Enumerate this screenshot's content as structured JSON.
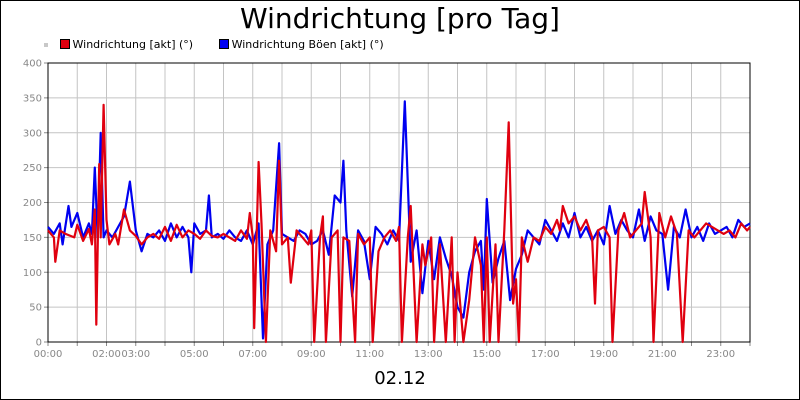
{
  "chart_data": {
    "type": "line",
    "title": "Windrichtung [pro Tag]",
    "xlabel": "02.12",
    "ylabel": "",
    "ylim": [
      0,
      400
    ],
    "yticks": [
      0,
      50,
      100,
      150,
      200,
      250,
      300,
      350,
      400
    ],
    "xlim": [
      0,
      24
    ],
    "xtick_labels": [
      "00:00",
      "02:00",
      "03:00",
      "05:00",
      "07:00",
      "09:00",
      "11:00",
      "13:00",
      "15:00",
      "17:00",
      "19:00",
      "21:00",
      "23:00"
    ],
    "xtick_hours": [
      0,
      2,
      3,
      5,
      7,
      9,
      11,
      13,
      15,
      17,
      19,
      21,
      23
    ],
    "grid": true,
    "legend_position": "top-left",
    "series": [
      {
        "name": "Windrichtung [akt] (°)",
        "color": "#e0000f",
        "points": [
          [
            0.0,
            160
          ],
          [
            0.2,
            150
          ],
          [
            0.25,
            115
          ],
          [
            0.4,
            160
          ],
          [
            0.6,
            155
          ],
          [
            0.9,
            150
          ],
          [
            1.0,
            168
          ],
          [
            1.2,
            145
          ],
          [
            1.4,
            162
          ],
          [
            1.5,
            140
          ],
          [
            1.6,
            190
          ],
          [
            1.65,
            25
          ],
          [
            1.75,
            255
          ],
          [
            1.8,
            150
          ],
          [
            1.9,
            340
          ],
          [
            2.0,
            175
          ],
          [
            2.1,
            140
          ],
          [
            2.3,
            155
          ],
          [
            2.4,
            140
          ],
          [
            2.6,
            190
          ],
          [
            2.8,
            160
          ],
          [
            3.0,
            152
          ],
          [
            3.2,
            140
          ],
          [
            3.4,
            150
          ],
          [
            3.6,
            155
          ],
          [
            3.8,
            148
          ],
          [
            4.0,
            165
          ],
          [
            4.2,
            145
          ],
          [
            4.4,
            168
          ],
          [
            4.6,
            150
          ],
          [
            4.8,
            160
          ],
          [
            5.0,
            155
          ],
          [
            5.2,
            148
          ],
          [
            5.4,
            160
          ],
          [
            5.6,
            152
          ],
          [
            5.8,
            150
          ],
          [
            6.0,
            155
          ],
          [
            6.2,
            150
          ],
          [
            6.4,
            145
          ],
          [
            6.6,
            160
          ],
          [
            6.8,
            148
          ],
          [
            6.9,
            185
          ],
          [
            7.0,
            150
          ],
          [
            7.05,
            20
          ],
          [
            7.2,
            258
          ],
          [
            7.3,
            170
          ],
          [
            7.45,
            0
          ],
          [
            7.6,
            160
          ],
          [
            7.8,
            130
          ],
          [
            7.9,
            260
          ],
          [
            8.0,
            140
          ],
          [
            8.2,
            150
          ],
          [
            8.3,
            85
          ],
          [
            8.5,
            160
          ],
          [
            8.7,
            150
          ],
          [
            8.9,
            140
          ],
          [
            9.0,
            160
          ],
          [
            9.1,
            0
          ],
          [
            9.3,
            150
          ],
          [
            9.4,
            180
          ],
          [
            9.5,
            0
          ],
          [
            9.7,
            150
          ],
          [
            9.9,
            160
          ],
          [
            10.0,
            0
          ],
          [
            10.1,
            150
          ],
          [
            10.3,
            145
          ],
          [
            10.5,
            0
          ],
          [
            10.6,
            155
          ],
          [
            10.8,
            140
          ],
          [
            11.0,
            150
          ],
          [
            11.1,
            0
          ],
          [
            11.3,
            130
          ],
          [
            11.5,
            150
          ],
          [
            11.7,
            160
          ],
          [
            11.9,
            145
          ],
          [
            12.0,
            165
          ],
          [
            12.1,
            0
          ],
          [
            12.3,
            150
          ],
          [
            12.4,
            195
          ],
          [
            12.6,
            0
          ],
          [
            12.8,
            140
          ],
          [
            12.9,
            110
          ],
          [
            13.1,
            150
          ],
          [
            13.2,
            0
          ],
          [
            13.4,
            140
          ],
          [
            13.6,
            0
          ],
          [
            13.8,
            150
          ],
          [
            13.9,
            0
          ],
          [
            14.0,
            100
          ],
          [
            14.2,
            0
          ],
          [
            14.4,
            60
          ],
          [
            14.6,
            150
          ],
          [
            14.8,
            110
          ],
          [
            14.9,
            0
          ],
          [
            15.0,
            150
          ],
          [
            15.1,
            0
          ],
          [
            15.3,
            140
          ],
          [
            15.4,
            0
          ],
          [
            15.6,
            160
          ],
          [
            15.75,
            315
          ],
          [
            15.9,
            55
          ],
          [
            16.0,
            90
          ],
          [
            16.1,
            0
          ],
          [
            16.2,
            150
          ],
          [
            16.4,
            115
          ],
          [
            16.6,
            150
          ],
          [
            16.8,
            145
          ],
          [
            17.0,
            165
          ],
          [
            17.2,
            155
          ],
          [
            17.4,
            175
          ],
          [
            17.5,
            160
          ],
          [
            17.6,
            195
          ],
          [
            17.8,
            170
          ],
          [
            18.0,
            180
          ],
          [
            18.2,
            160
          ],
          [
            18.4,
            175
          ],
          [
            18.6,
            150
          ],
          [
            18.7,
            55
          ],
          [
            18.8,
            160
          ],
          [
            19.0,
            165
          ],
          [
            19.2,
            150
          ],
          [
            19.3,
            0
          ],
          [
            19.5,
            160
          ],
          [
            19.7,
            185
          ],
          [
            19.9,
            150
          ],
          [
            20.1,
            160
          ],
          [
            20.3,
            170
          ],
          [
            20.4,
            215
          ],
          [
            20.6,
            150
          ],
          [
            20.7,
            0
          ],
          [
            20.9,
            185
          ],
          [
            21.1,
            150
          ],
          [
            21.3,
            180
          ],
          [
            21.5,
            155
          ],
          [
            21.7,
            0
          ],
          [
            21.9,
            160
          ],
          [
            22.1,
            150
          ],
          [
            22.3,
            160
          ],
          [
            22.5,
            170
          ],
          [
            22.7,
            165
          ],
          [
            22.9,
            160
          ],
          [
            23.1,
            155
          ],
          [
            23.3,
            160
          ],
          [
            23.5,
            150
          ],
          [
            23.7,
            170
          ],
          [
            23.9,
            160
          ],
          [
            24.0,
            165
          ]
        ]
      },
      {
        "name": "Windrichtung Böen [akt] (°)",
        "color": "#0000f0",
        "points": [
          [
            0.0,
            165
          ],
          [
            0.2,
            155
          ],
          [
            0.4,
            170
          ],
          [
            0.5,
            140
          ],
          [
            0.7,
            195
          ],
          [
            0.8,
            165
          ],
          [
            1.0,
            185
          ],
          [
            1.2,
            150
          ],
          [
            1.4,
            170
          ],
          [
            1.5,
            155
          ],
          [
            1.6,
            250
          ],
          [
            1.7,
            150
          ],
          [
            1.8,
            300
          ],
          [
            1.9,
            150
          ],
          [
            2.0,
            160
          ],
          [
            2.2,
            150
          ],
          [
            2.4,
            165
          ],
          [
            2.6,
            180
          ],
          [
            2.8,
            230
          ],
          [
            3.0,
            160
          ],
          [
            3.2,
            130
          ],
          [
            3.4,
            155
          ],
          [
            3.6,
            150
          ],
          [
            3.8,
            160
          ],
          [
            4.0,
            145
          ],
          [
            4.2,
            170
          ],
          [
            4.4,
            150
          ],
          [
            4.6,
            165
          ],
          [
            4.8,
            150
          ],
          [
            4.9,
            100
          ],
          [
            5.0,
            170
          ],
          [
            5.2,
            155
          ],
          [
            5.4,
            160
          ],
          [
            5.5,
            210
          ],
          [
            5.6,
            150
          ],
          [
            5.8,
            155
          ],
          [
            6.0,
            148
          ],
          [
            6.2,
            160
          ],
          [
            6.4,
            150
          ],
          [
            6.6,
            145
          ],
          [
            6.8,
            160
          ],
          [
            7.0,
            140
          ],
          [
            7.2,
            170
          ],
          [
            7.35,
            5
          ],
          [
            7.5,
            140
          ],
          [
            7.7,
            160
          ],
          [
            7.9,
            285
          ],
          [
            8.0,
            155
          ],
          [
            8.2,
            150
          ],
          [
            8.4,
            145
          ],
          [
            8.6,
            160
          ],
          [
            8.8,
            155
          ],
          [
            9.0,
            140
          ],
          [
            9.2,
            145
          ],
          [
            9.4,
            160
          ],
          [
            9.6,
            125
          ],
          [
            9.8,
            210
          ],
          [
            10.0,
            200
          ],
          [
            10.1,
            260
          ],
          [
            10.2,
            160
          ],
          [
            10.4,
            65
          ],
          [
            10.6,
            160
          ],
          [
            10.8,
            145
          ],
          [
            11.0,
            90
          ],
          [
            11.2,
            165
          ],
          [
            11.4,
            155
          ],
          [
            11.6,
            140
          ],
          [
            11.8,
            160
          ],
          [
            12.0,
            145
          ],
          [
            12.2,
            345
          ],
          [
            12.4,
            115
          ],
          [
            12.6,
            160
          ],
          [
            12.8,
            70
          ],
          [
            13.0,
            145
          ],
          [
            13.2,
            90
          ],
          [
            13.4,
            150
          ],
          [
            13.6,
            120
          ],
          [
            13.8,
            95
          ],
          [
            14.0,
            50
          ],
          [
            14.2,
            35
          ],
          [
            14.4,
            100
          ],
          [
            14.6,
            130
          ],
          [
            14.8,
            145
          ],
          [
            14.9,
            75
          ],
          [
            15.0,
            205
          ],
          [
            15.2,
            85
          ],
          [
            15.4,
            120
          ],
          [
            15.6,
            145
          ],
          [
            15.8,
            60
          ],
          [
            16.0,
            105
          ],
          [
            16.2,
            125
          ],
          [
            16.4,
            160
          ],
          [
            16.6,
            150
          ],
          [
            16.8,
            140
          ],
          [
            17.0,
            175
          ],
          [
            17.2,
            160
          ],
          [
            17.4,
            145
          ],
          [
            17.6,
            170
          ],
          [
            17.8,
            150
          ],
          [
            18.0,
            185
          ],
          [
            18.2,
            150
          ],
          [
            18.4,
            165
          ],
          [
            18.6,
            145
          ],
          [
            18.8,
            160
          ],
          [
            19.0,
            140
          ],
          [
            19.2,
            195
          ],
          [
            19.4,
            155
          ],
          [
            19.6,
            175
          ],
          [
            19.8,
            160
          ],
          [
            20.0,
            150
          ],
          [
            20.2,
            190
          ],
          [
            20.4,
            145
          ],
          [
            20.6,
            180
          ],
          [
            20.8,
            160
          ],
          [
            21.0,
            155
          ],
          [
            21.2,
            75
          ],
          [
            21.4,
            165
          ],
          [
            21.6,
            150
          ],
          [
            21.8,
            190
          ],
          [
            22.0,
            150
          ],
          [
            22.2,
            165
          ],
          [
            22.4,
            145
          ],
          [
            22.6,
            170
          ],
          [
            22.8,
            155
          ],
          [
            23.0,
            160
          ],
          [
            23.2,
            165
          ],
          [
            23.4,
            150
          ],
          [
            23.6,
            175
          ],
          [
            23.8,
            165
          ],
          [
            24.0,
            170
          ]
        ]
      }
    ]
  }
}
